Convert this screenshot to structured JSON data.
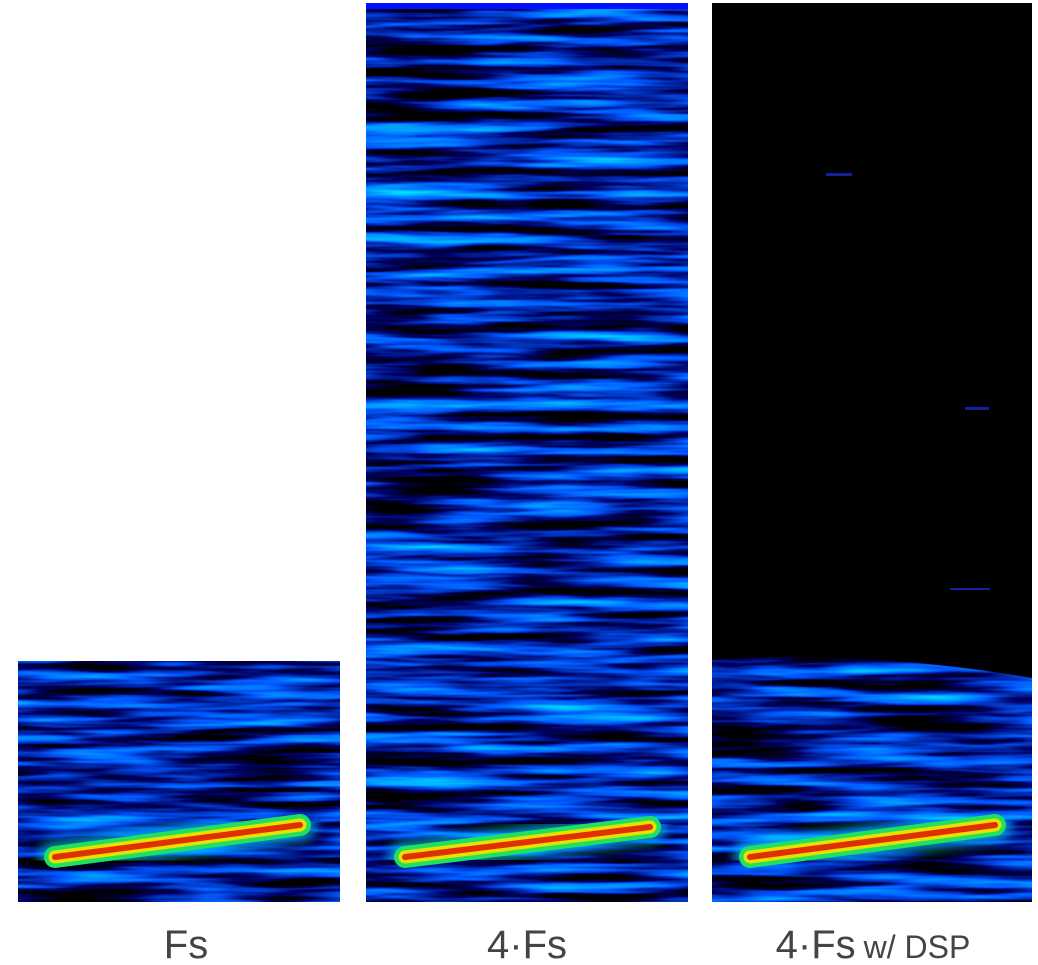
{
  "panels": [
    {
      "label": "Fs"
    },
    {
      "label": "4·Fs"
    },
    {
      "label": "4·Fs",
      "note": "w/ DSP"
    }
  ]
}
